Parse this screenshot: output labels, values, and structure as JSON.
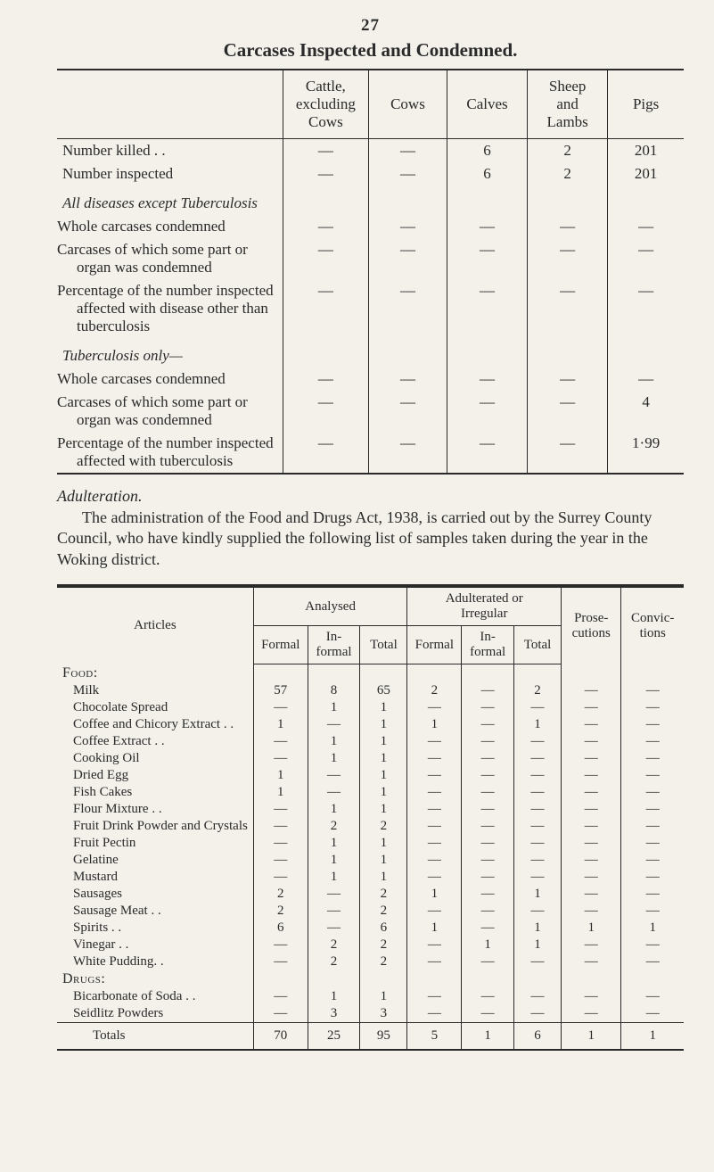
{
  "page_number": "27",
  "title": "Carcases Inspected and Condemned.",
  "table1": {
    "col_headers": {
      "c1": "Cattle,\nexcluding\nCows",
      "c2": "Cows",
      "c3": "Calves",
      "c4": "Sheep\nand\nLambs",
      "c5": "Pigs"
    },
    "rows": [
      {
        "label": "Number killed . .",
        "c1": "—",
        "c2": "—",
        "c3": "6",
        "c4": "2",
        "c5": "201"
      },
      {
        "label": "Number inspected",
        "c1": "—",
        "c2": "—",
        "c3": "6",
        "c4": "2",
        "c5": "201"
      },
      {
        "section_italic": "All diseases except Tuberculosis"
      },
      {
        "label": "Whole carcases condemned",
        "indent": true,
        "c1": "—",
        "c2": "—",
        "c3": "—",
        "c4": "—",
        "c5": "—"
      },
      {
        "label": "Carcases of which some part or organ was condemned",
        "indent": true,
        "c1": "—",
        "c2": "—",
        "c3": "—",
        "c4": "—",
        "c5": "—"
      },
      {
        "label": "Percentage of the number inspected affected with disease other than tuberculosis",
        "indent": true,
        "c1": "—",
        "c2": "—",
        "c3": "—",
        "c4": "—",
        "c5": "—"
      },
      {
        "section_italic": "Tuberculosis only—"
      },
      {
        "label": "Whole carcases condemned",
        "indent": true,
        "c1": "—",
        "c2": "—",
        "c3": "—",
        "c4": "—",
        "c5": "—"
      },
      {
        "label": "Carcases of which some part or organ was condemned",
        "indent": true,
        "c1": "—",
        "c2": "—",
        "c3": "—",
        "c4": "—",
        "c5": "4"
      },
      {
        "label": "Percentage of the number inspected affected with tuberculosis",
        "indent": true,
        "c1": "—",
        "c2": "—",
        "c3": "—",
        "c4": "—",
        "c5": "1·99"
      }
    ]
  },
  "mid_heading": "Adulteration.",
  "mid_paragraph": "The administration of the Food and Drugs Act, 1938, is carried out by the Surrey County Council, who have kindly supplied the following list of samples taken during the year in the Woking district.",
  "table2": {
    "headers": {
      "articles": "Articles",
      "analysed": "Analysed",
      "adulterated": "Adulterated or\nIrregular",
      "prose": "Prose-\ncutions",
      "convic": "Convic-\ntions",
      "formal": "Formal",
      "informal": "In-\nformal",
      "total": "Total"
    },
    "sections": [
      {
        "title": "Food:",
        "rows": [
          {
            "label": "Milk",
            "v": [
              "57",
              "8",
              "65",
              "2",
              "—",
              "2",
              "—",
              "—"
            ]
          },
          {
            "label": "Chocolate Spread",
            "v": [
              "—",
              "1",
              "1",
              "—",
              "—",
              "—",
              "—",
              "—"
            ]
          },
          {
            "label": "Coffee and Chicory Extract . .",
            "v": [
              "1",
              "—",
              "1",
              "1",
              "—",
              "1",
              "—",
              "—"
            ]
          },
          {
            "label": "Coffee Extract . .",
            "v": [
              "—",
              "1",
              "1",
              "—",
              "—",
              "—",
              "—",
              "—"
            ]
          },
          {
            "label": "Cooking Oil",
            "v": [
              "—",
              "1",
              "1",
              "—",
              "—",
              "—",
              "—",
              "—"
            ]
          },
          {
            "label": "Dried Egg",
            "v": [
              "1",
              "—",
              "1",
              "—",
              "—",
              "—",
              "—",
              "—"
            ]
          },
          {
            "label": "Fish Cakes",
            "v": [
              "1",
              "—",
              "1",
              "—",
              "—",
              "—",
              "—",
              "—"
            ]
          },
          {
            "label": "Flour Mixture . .",
            "v": [
              "—",
              "1",
              "1",
              "—",
              "—",
              "—",
              "—",
              "—"
            ]
          },
          {
            "label": "Fruit Drink Powder and Crystals",
            "v": [
              "—",
              "2",
              "2",
              "—",
              "—",
              "—",
              "—",
              "—"
            ]
          },
          {
            "label": "Fruit Pectin",
            "v": [
              "—",
              "1",
              "1",
              "—",
              "—",
              "—",
              "—",
              "—"
            ]
          },
          {
            "label": "Gelatine",
            "v": [
              "—",
              "1",
              "1",
              "—",
              "—",
              "—",
              "—",
              "—"
            ]
          },
          {
            "label": "Mustard",
            "v": [
              "—",
              "1",
              "1",
              "—",
              "—",
              "—",
              "—",
              "—"
            ]
          },
          {
            "label": "Sausages",
            "v": [
              "2",
              "—",
              "2",
              "1",
              "—",
              "1",
              "—",
              "—"
            ]
          },
          {
            "label": "Sausage Meat . .",
            "v": [
              "2",
              "—",
              "2",
              "—",
              "—",
              "—",
              "—",
              "—"
            ]
          },
          {
            "label": "Spirits . .",
            "v": [
              "6",
              "—",
              "6",
              "1",
              "—",
              "1",
              "1",
              "1"
            ]
          },
          {
            "label": "Vinegar . .",
            "v": [
              "—",
              "2",
              "2",
              "—",
              "1",
              "1",
              "—",
              "—"
            ]
          },
          {
            "label": "White Pudding. .",
            "v": [
              "—",
              "2",
              "2",
              "—",
              "—",
              "—",
              "—",
              "—"
            ]
          }
        ]
      },
      {
        "title": "Drugs:",
        "rows": [
          {
            "label": "Bicarbonate of Soda . .",
            "v": [
              "—",
              "1",
              "1",
              "—",
              "—",
              "—",
              "—",
              "—"
            ]
          },
          {
            "label": "Seidlitz Powders",
            "v": [
              "—",
              "3",
              "3",
              "—",
              "—",
              "—",
              "—",
              "—"
            ]
          }
        ]
      }
    ],
    "totals": {
      "label": "Totals",
      "v": [
        "70",
        "25",
        "95",
        "5",
        "1",
        "6",
        "1",
        "1"
      ]
    }
  },
  "style": {
    "background_color": "#f3f1ea",
    "text_color": "#2a2a2a",
    "dash_glyph": "—"
  }
}
